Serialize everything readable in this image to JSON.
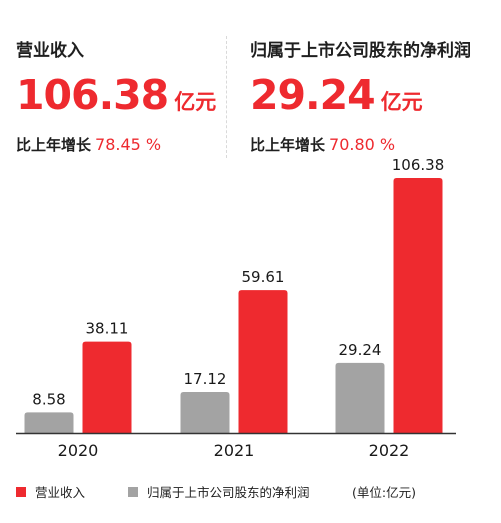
{
  "colors": {
    "accent": "#ee2a2f",
    "secondary": "#a3a3a3"
  },
  "kpis": [
    {
      "label": "营业收入",
      "value": "106.38",
      "unit": "亿元",
      "growth_label": "比上年增长",
      "growth_value": "78.45 %"
    },
    {
      "label": "归属于上市公司股东的净利润",
      "value": "29.24",
      "unit": "亿元",
      "growth_label": "比上年增长",
      "growth_value": "70.80 %"
    }
  ],
  "legend": {
    "unit_note": "(单位:亿元)"
  },
  "chart_data": {
    "type": "bar",
    "categories": [
      "2020",
      "2021",
      "2022"
    ],
    "series": [
      {
        "name": "归属于上市公司股东的净利润",
        "color": "#a3a3a3",
        "values": [
          8.58,
          17.12,
          29.24
        ]
      },
      {
        "name": "营业收入",
        "color": "#ee2a2f",
        "values": [
          38.11,
          59.61,
          106.38
        ]
      }
    ],
    "data_labels": true,
    "grid": false
  }
}
